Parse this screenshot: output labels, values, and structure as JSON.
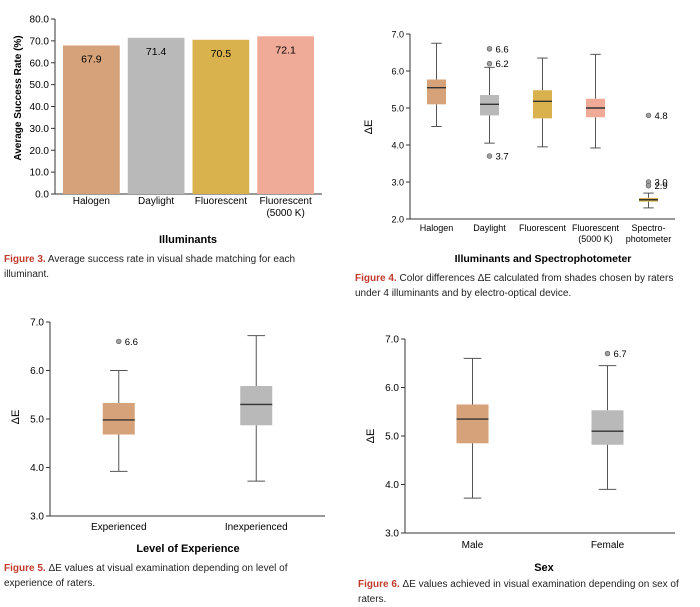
{
  "chart_data": [
    {
      "id": "fig3",
      "type": "bar",
      "ylabel": "Average Success Rate (%)",
      "xlabel": "Illuminants",
      "ylim": [
        0,
        80
      ],
      "yticks": [
        "0.0",
        "10.0",
        "20.0",
        "30.0",
        "40.0",
        "50.0",
        "60.0",
        "70.0",
        "80.0"
      ],
      "categories": [
        "Halogen",
        "Daylight",
        "Fluorescent",
        "Fluorescent (5000 K)"
      ],
      "category_labels": [
        [
          "Halogen"
        ],
        [
          "Daylight"
        ],
        [
          "Fluorescent"
        ],
        [
          "Fluorescent",
          "(5000 K)"
        ]
      ],
      "values": [
        67.9,
        71.4,
        70.5,
        72.1
      ],
      "value_labels": [
        "67.9",
        "71.4",
        "70.5",
        "72.1"
      ],
      "colors": [
        "#d6a27a",
        "#b9b9b9",
        "#d9b24e",
        "#f0aa98"
      ],
      "caption_label": "Figure 3.",
      "caption_text": "Average success rate in visual shade matching for each illuminant."
    },
    {
      "id": "fig4",
      "type": "box",
      "ylabel": "ΔE",
      "xlabel": "Illuminants and Spectrophotometer",
      "ylim": [
        2.0,
        7.0
      ],
      "yticks": [
        "2.0",
        "3.0",
        "4.0",
        "5.0",
        "6.0",
        "7.0"
      ],
      "categories": [
        "Halogen",
        "Daylight",
        "Fluorescent",
        "Fluorescent (5000 K)",
        "Spectro-photometer"
      ],
      "category_labels": [
        [
          "Halogen"
        ],
        [
          "Daylight"
        ],
        [
          "Fluorescent"
        ],
        [
          "Fluorescent",
          "(5000 K)"
        ],
        [
          "Spectro-",
          "photometer"
        ]
      ],
      "boxes": [
        {
          "min": 4.5,
          "q1": 5.1,
          "median": 5.55,
          "q3": 5.77,
          "max": 6.75,
          "color": "#d6a27a"
        },
        {
          "min": 4.05,
          "q1": 4.8,
          "median": 5.1,
          "q3": 5.35,
          "max": 6.1,
          "color": "#b9b9b9"
        },
        {
          "min": 3.95,
          "q1": 4.72,
          "median": 5.18,
          "q3": 5.48,
          "max": 6.35,
          "color": "#d9b24e"
        },
        {
          "min": 3.92,
          "q1": 4.75,
          "median": 5.0,
          "q3": 5.25,
          "max": 6.45,
          "color": "#f0aa98"
        },
        {
          "min": 2.3,
          "q1": 2.47,
          "median": 2.52,
          "q3": 2.57,
          "max": 2.7,
          "color": "#d9b24e"
        }
      ],
      "outliers": [
        {
          "group": 1,
          "value": 6.6,
          "label": "6.6"
        },
        {
          "group": 1,
          "value": 6.2,
          "label": "6.2"
        },
        {
          "group": 1,
          "value": 3.7,
          "label": "3.7"
        },
        {
          "group": 4,
          "value": 4.8,
          "label": "4.8"
        },
        {
          "group": 4,
          "value": 3.0,
          "label": "3.0"
        },
        {
          "group": 4,
          "value": 2.9,
          "label": "2.9"
        }
      ],
      "caption_label": "Figure 4.",
      "caption_text": "Color differences ΔE calculated from shades chosen by raters under 4 illuminants and by electro-optical device."
    },
    {
      "id": "fig5",
      "type": "box",
      "ylabel": "ΔE",
      "xlabel": "Level of Experience",
      "ylim": [
        3.0,
        7.0
      ],
      "yticks": [
        "3.0",
        "4.0",
        "5.0",
        "6.0",
        "7.0"
      ],
      "categories": [
        "Experienced",
        "Inexperienced"
      ],
      "category_labels": [
        [
          "Experienced"
        ],
        [
          "Inexperienced"
        ]
      ],
      "boxes": [
        {
          "min": 3.92,
          "q1": 4.68,
          "median": 4.98,
          "q3": 5.33,
          "max": 6.0,
          "color": "#d6a27a"
        },
        {
          "min": 3.72,
          "q1": 4.87,
          "median": 5.3,
          "q3": 5.68,
          "max": 6.72,
          "color": "#b9b9b9"
        }
      ],
      "outliers": [
        {
          "group": 0,
          "value": 6.6,
          "label": "6.6"
        }
      ],
      "caption_label": "Figure 5.",
      "caption_text": "ΔE values at visual examination depending on level of experience of raters."
    },
    {
      "id": "fig6",
      "type": "box",
      "ylabel": "ΔE",
      "xlabel": "Sex",
      "ylim": [
        3.0,
        7.0
      ],
      "yticks": [
        "3.0",
        "4.0",
        "5.0",
        "6.0",
        "7.0"
      ],
      "categories": [
        "Male",
        "Female"
      ],
      "category_labels": [
        [
          "Male"
        ],
        [
          "Female"
        ]
      ],
      "boxes": [
        {
          "min": 3.72,
          "q1": 4.85,
          "median": 5.35,
          "q3": 5.65,
          "max": 6.6,
          "color": "#d6a27a"
        },
        {
          "min": 3.9,
          "q1": 4.82,
          "median": 5.1,
          "q3": 5.53,
          "max": 6.45,
          "color": "#b9b9b9"
        }
      ],
      "outliers": [
        {
          "group": 1,
          "value": 6.7,
          "label": "6.7"
        }
      ],
      "caption_label": "Figure 6.",
      "caption_text": "ΔE values achieved in visual examination depending on sex of raters."
    }
  ]
}
